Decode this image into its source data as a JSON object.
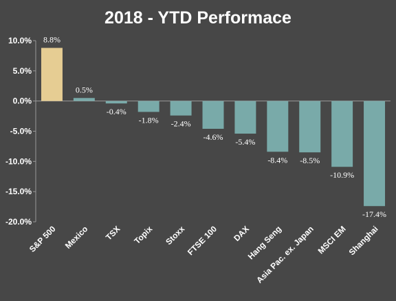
{
  "chart_data": {
    "type": "bar",
    "title": "2018 - YTD Performace",
    "categories": [
      "S&P 500",
      "Mexico",
      "TSX",
      "Topix",
      "Stoxx",
      "FTSE 100",
      "DAX",
      "Hang Seng",
      "Asia Pac. ex. Japan",
      "MSCI EM",
      "Shanghai"
    ],
    "values": [
      8.8,
      0.5,
      -0.4,
      -1.8,
      -2.4,
      -4.6,
      -5.4,
      -8.4,
      -8.5,
      -10.9,
      -17.4
    ],
    "value_labels": [
      "8.8%",
      "0.5%",
      "-0.4%",
      "-1.8%",
      "-2.4%",
      "-4.6%",
      "-5.4%",
      "-8.4%",
      "-8.5%",
      "-10.9%",
      "-17.4%"
    ],
    "ylim": [
      -20,
      10
    ],
    "yticks": [
      10,
      5,
      0,
      -5,
      -10,
      -15,
      -20
    ],
    "ytick_labels": [
      "10.0%",
      "5.0%",
      "0.0%",
      "-5.0%",
      "-10.0%",
      "-15.0%",
      "-20.0%"
    ],
    "xlabel": "",
    "ylabel": "",
    "grid": false,
    "colors": {
      "background": "#474747",
      "highlight": "#e6cd93",
      "bar": "#79aaa9",
      "text": "#ffffff",
      "axis": "#9a9a9a"
    }
  }
}
